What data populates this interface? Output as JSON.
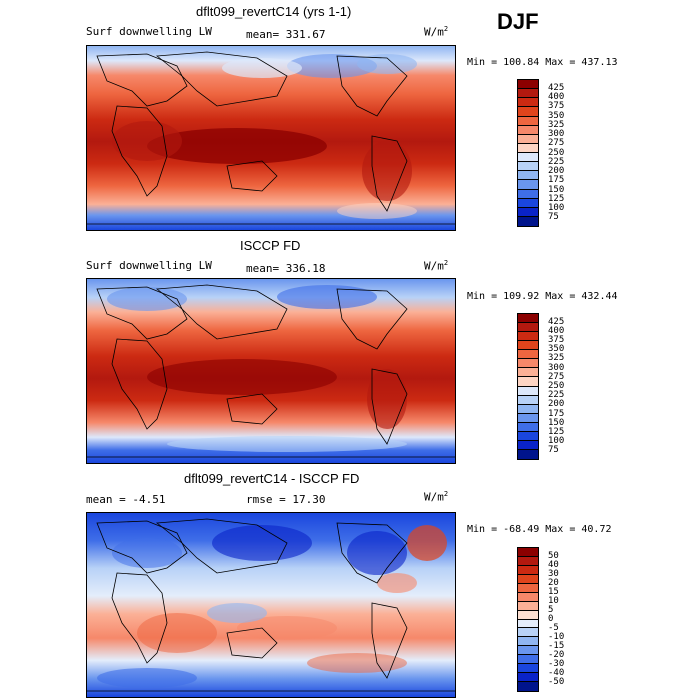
{
  "season": "DJF",
  "panels": [
    {
      "title": "dflt099_revertC14 (yrs 1-1)",
      "var_label": "Surf downwelling LW",
      "stat1": "mean= 331.67",
      "stat2": "",
      "units": "W/m",
      "units_sup": "2",
      "minmax": "Min = 100.84 Max = 437.13",
      "levels": [
        "425",
        "400",
        "375",
        "350",
        "325",
        "300",
        "275",
        "250",
        "225",
        "200",
        "175",
        "150",
        "125",
        "100",
        "75"
      ],
      "colors": [
        "#8b0000",
        "#b3190f",
        "#cc2a12",
        "#e0441c",
        "#ee6640",
        "#f6886a",
        "#fbb096",
        "#fdd5c4",
        "#dde8fb",
        "#b8d2f7",
        "#90b6f2",
        "#6a96ee",
        "#3f6ee8",
        "#1a46de",
        "#0a23c8",
        "#00148c"
      ]
    },
    {
      "title": "ISCCP FD",
      "var_label": "Surf downwelling LW",
      "stat1": "mean= 336.18",
      "stat2": "",
      "units": "W/m",
      "units_sup": "2",
      "minmax": "Min = 109.92 Max = 432.44",
      "levels": [
        "425",
        "400",
        "375",
        "350",
        "325",
        "300",
        "275",
        "250",
        "225",
        "200",
        "175",
        "150",
        "125",
        "100",
        "75"
      ],
      "colors": [
        "#8b0000",
        "#b3190f",
        "#cc2a12",
        "#e0441c",
        "#ee6640",
        "#f6886a",
        "#fbb096",
        "#fdd5c4",
        "#dde8fb",
        "#b8d2f7",
        "#90b6f2",
        "#6a96ee",
        "#3f6ee8",
        "#1a46de",
        "#0a23c8",
        "#00148c"
      ]
    },
    {
      "title": "dflt099_revertC14 - ISCCP FD",
      "var_label": "",
      "stat1": "mean =  -4.51",
      "stat2": "rmse =  17.30",
      "units": "W/m",
      "units_sup": "2",
      "minmax": "Min = -68.49 Max =  40.72",
      "levels": [
        "50",
        "40",
        "30",
        "20",
        "15",
        "10",
        "5",
        "0",
        "-5",
        "-10",
        "-15",
        "-20",
        "-30",
        "-40",
        "-50"
      ],
      "colors": [
        "#8b0000",
        "#b3190f",
        "#cc2a12",
        "#e0441c",
        "#ee6640",
        "#f6886a",
        "#fbb096",
        "#fde0d2",
        "#e4edfb",
        "#b8d2f7",
        "#90b6f2",
        "#6a96ee",
        "#3f6ee8",
        "#1a46de",
        "#0a23c8",
        "#00148c"
      ]
    }
  ],
  "chart_data": [
    {
      "type": "heatmap",
      "title": "dflt099_revertC14 (yrs 1-1)",
      "variable": "Surf downwelling LW",
      "units": "W/m2",
      "mean": 331.67,
      "min": 100.84,
      "max": 437.13,
      "contour_levels": [
        75,
        100,
        125,
        150,
        175,
        200,
        225,
        250,
        275,
        300,
        325,
        350,
        375,
        400,
        425
      ]
    },
    {
      "type": "heatmap",
      "title": "ISCCP FD",
      "variable": "Surf downwelling LW",
      "units": "W/m2",
      "mean": 336.18,
      "min": 109.92,
      "max": 432.44,
      "contour_levels": [
        75,
        100,
        125,
        150,
        175,
        200,
        225,
        250,
        275,
        300,
        325,
        350,
        375,
        400,
        425
      ]
    },
    {
      "type": "heatmap",
      "title": "dflt099_revertC14 - ISCCP FD",
      "units": "W/m2",
      "mean": -4.51,
      "rmse": 17.3,
      "min": -68.49,
      "max": 40.72,
      "contour_levels": [
        -50,
        -40,
        -30,
        -20,
        -15,
        -10,
        -5,
        0,
        5,
        10,
        15,
        20,
        30,
        40,
        50
      ]
    }
  ]
}
